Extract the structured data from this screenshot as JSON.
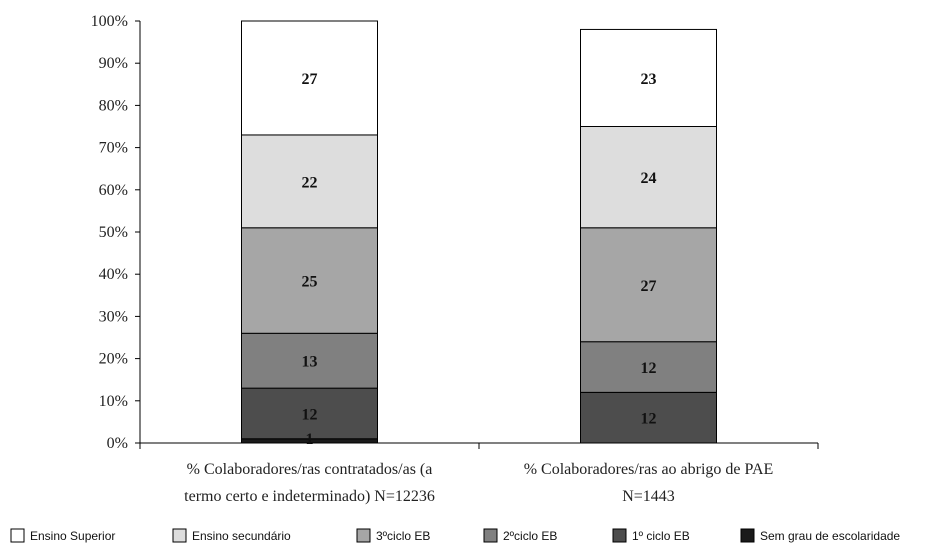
{
  "chart_data": {
    "type": "bar",
    "stacked": true,
    "normalized_percent": true,
    "categories": [
      "% Colaboradores/ras  contratados/as (a termo certo e indeterminado)  N=12236",
      "% Colaboradores/ras ao abrigo de PAE N=1443"
    ],
    "category_lines": [
      [
        "% Colaboradores/ras  contratados/as (a",
        "termo certo e indeterminado)  N=12236"
      ],
      [
        "% Colaboradores/ras ao abrigo de PAE",
        "N=1443"
      ]
    ],
    "series": [
      {
        "name": "Sem grau de escolaridade",
        "values": [
          1,
          0
        ],
        "labels": [
          "1",
          ""
        ],
        "color": "#1a1a1a"
      },
      {
        "name": "1º ciclo EB",
        "values": [
          12,
          12
        ],
        "labels": [
          "12",
          "12"
        ],
        "color": "#4d4d4d"
      },
      {
        "name": "2ºciclo EB",
        "values": [
          13,
          12
        ],
        "labels": [
          "13",
          "12"
        ],
        "color": "#808080"
      },
      {
        "name": "3ºciclo EB",
        "values": [
          25,
          27
        ],
        "labels": [
          "25",
          "27"
        ],
        "color": "#a6a6a6"
      },
      {
        "name": "Ensino secundário",
        "values": [
          22,
          24
        ],
        "labels": [
          "22",
          "24"
        ],
        "color": "#dddddd"
      },
      {
        "name": "Ensino Superior",
        "values": [
          27,
          23
        ],
        "labels": [
          "27",
          "23"
        ],
        "color": "#ffffff"
      }
    ],
    "legend_order": [
      "Ensino Superior",
      "Ensino secundário",
      "3ºciclo EB",
      "2ºciclo EB",
      "1º ciclo EB",
      "Sem grau de escolaridade"
    ],
    "yticks": [
      "0%",
      "10%",
      "20%",
      "30%",
      "40%",
      "50%",
      "60%",
      "70%",
      "80%",
      "90%",
      "100%"
    ],
    "ylim": [
      0,
      100
    ],
    "grid": false,
    "legend_position": "bottom",
    "title": "",
    "xlabel": "",
    "ylabel": ""
  }
}
